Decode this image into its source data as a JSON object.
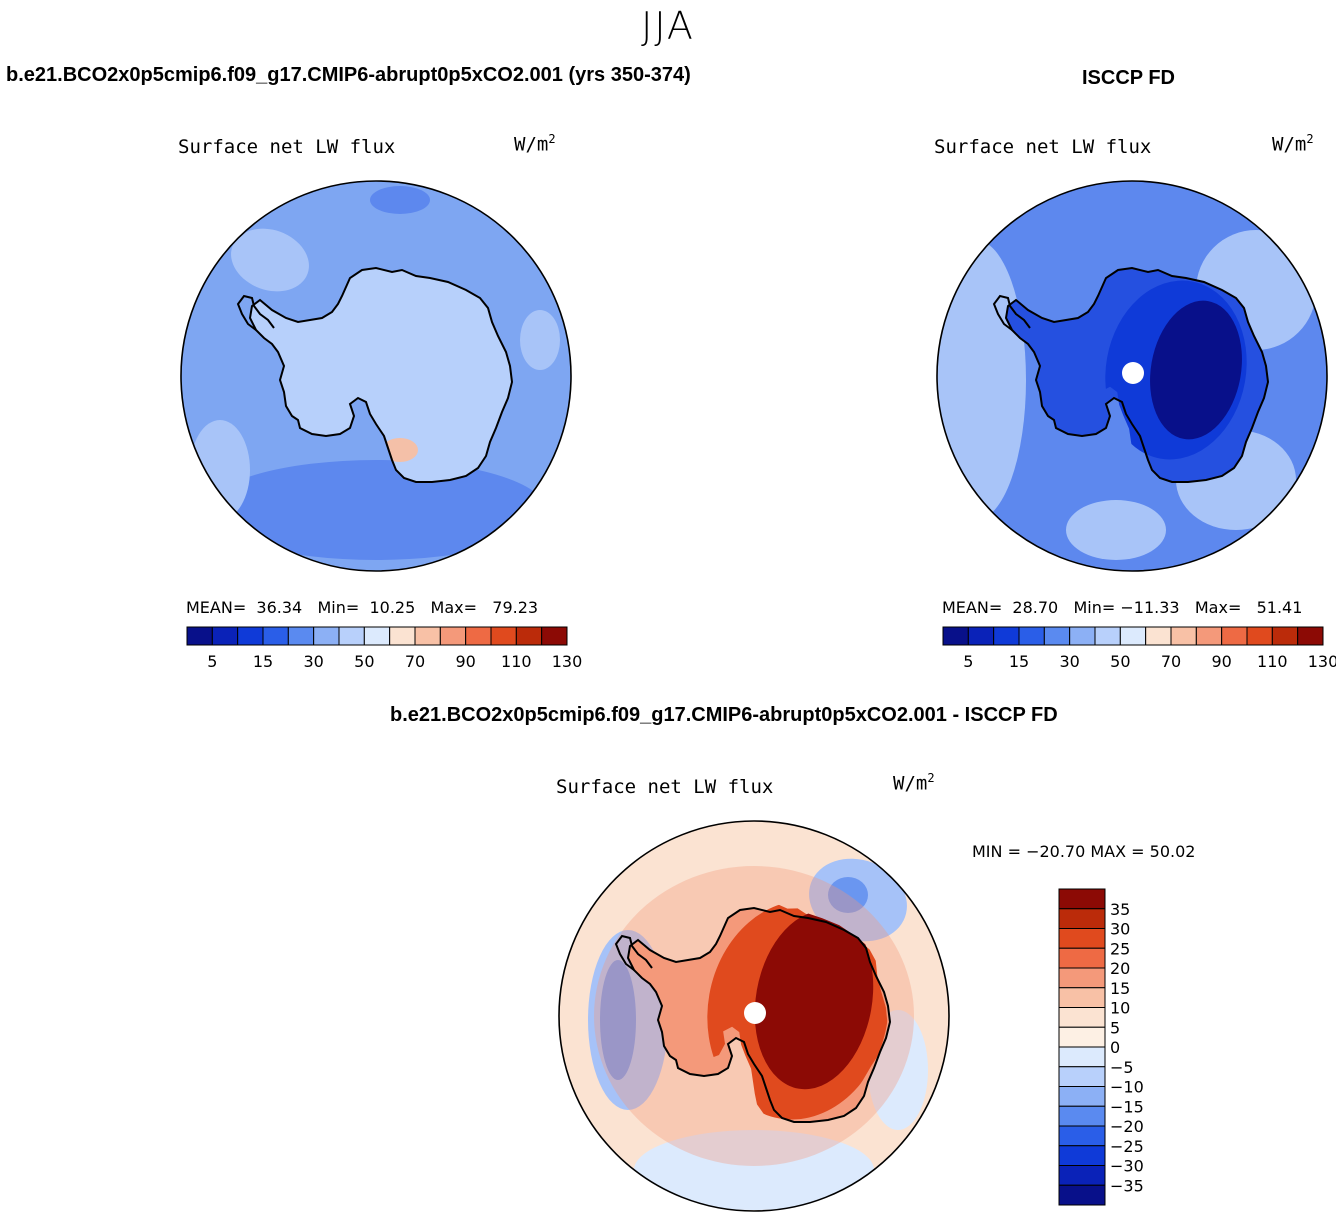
{
  "season": "JJA",
  "panels": {
    "model": {
      "title": "b.e21.BCO2x0p5cmip6.f09_g17.CMIP6-abrupt0p5xCO2.001 (yrs 350-374)",
      "variable": "Surface net LW flux",
      "units_base": "W/m",
      "units_exp": "2",
      "stats": {
        "mean_label": "MEAN=",
        "mean": "36.34",
        "min_label": "Min=",
        "min": "10.25",
        "max_label": "Max=",
        "max": "79.23"
      }
    },
    "obs": {
      "title": "ISCCP FD",
      "variable": "Surface net LW flux",
      "units_base": "W/m",
      "units_exp": "2",
      "stats": {
        "mean_label": "MEAN=",
        "mean": "28.70",
        "min_label": "Min=",
        "min": "−11.33",
        "max_label": "Max=",
        "max": "51.41"
      }
    },
    "diff": {
      "title": "b.e21.BCO2x0p5cmip6.f09_g17.CMIP6-abrupt0p5xCO2.001 - ISCCP FD",
      "variable": "Surface net LW flux",
      "units_base": "W/m",
      "units_exp": "2",
      "minmax": "MIN = −20.70 MAX =  50.02"
    }
  },
  "colorbar_abs": {
    "colors": [
      "#08108a",
      "#0a22b8",
      "#0f3ad8",
      "#2a5ee8",
      "#5a8af0",
      "#8cb0f5",
      "#b8d0fb",
      "#dceafd",
      "#fbe3d2",
      "#f8c1a6",
      "#f4997a",
      "#ee6a44",
      "#e04a1e",
      "#bb2b0a",
      "#8c0a05"
    ],
    "labels": [
      "5",
      "15",
      "30",
      "50",
      "70",
      "90",
      "110",
      "130"
    ]
  },
  "colorbar_diff": {
    "colors": [
      "#8c0a05",
      "#bb2b0a",
      "#e04a1e",
      "#ee6a44",
      "#f4997a",
      "#f8c1a6",
      "#fbe3d2",
      "#fdf0e4",
      "#dceafd",
      "#b8d0fb",
      "#8cb0f5",
      "#5a8af0",
      "#2a5ee8",
      "#0f3ad8",
      "#0a22b8",
      "#08108a"
    ],
    "labels": [
      "35",
      "30",
      "25",
      "20",
      "15",
      "10",
      "5",
      "0",
      "−5",
      "−10",
      "−15",
      "−20",
      "−25",
      "−30",
      "−35"
    ]
  },
  "map_colors": {
    "ocean_abs": "#7ea6f2",
    "ocean_abs_light": "#a8c4f8",
    "ocean_abs_mid": "#5d88ee",
    "land_abs": "#b7d0fb",
    "land_abs_hot": "#f4c0a8",
    "ocean_obs": "#5d88ee",
    "ocean_obs_light": "#a8c4f8",
    "land_obs_1": "#2550e0",
    "land_obs_2": "#0f3ad8",
    "land_obs_3": "#08108a",
    "diff_ocean": "#fbe3d2",
    "diff_blue1": "#dceafd",
    "diff_blue2": "#a6c2f8",
    "diff_blue3": "#6a96f0",
    "diff_land1": "#f4997a",
    "diff_land2": "#e04a1e",
    "diff_land3": "#8c0a05",
    "coast": "#000000",
    "pole": "#ffffff"
  }
}
